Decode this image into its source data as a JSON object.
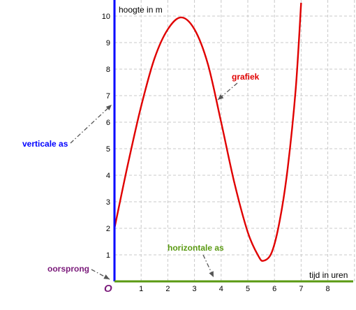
{
  "chart_data": {
    "type": "line",
    "xlabel": "tijd in uren",
    "ylabel": "hoogte in m",
    "origin_label": "O",
    "xlim": [
      0,
      9
    ],
    "ylim": [
      0,
      10.5
    ],
    "x_ticks": [
      "1",
      "2",
      "3",
      "4",
      "5",
      "6",
      "7",
      "8"
    ],
    "y_ticks": [
      "1",
      "2",
      "3",
      "4",
      "5",
      "6",
      "7",
      "8",
      "9",
      "10"
    ],
    "grid": true,
    "series": [
      {
        "color": "#e00000",
        "points": [
          [
            0.0,
            2.0
          ],
          [
            0.5,
            4.4
          ],
          [
            1.0,
            6.6
          ],
          [
            1.5,
            8.4
          ],
          [
            2.0,
            9.5
          ],
          [
            2.5,
            9.95
          ],
          [
            3.0,
            9.5
          ],
          [
            3.5,
            8.2
          ],
          [
            4.0,
            6.0
          ],
          [
            4.5,
            3.7
          ],
          [
            5.0,
            1.85
          ],
          [
            5.4,
            0.95
          ],
          [
            5.6,
            0.78
          ],
          [
            5.9,
            1.1
          ],
          [
            6.2,
            2.3
          ],
          [
            6.5,
            4.3
          ],
          [
            6.8,
            7.3
          ],
          [
            7.0,
            10.5
          ]
        ]
      }
    ],
    "annotations": {
      "grafiek": "grafiek",
      "verticale_as": "verticale as",
      "horizontale_as": "horizontale as",
      "oorsprong": "oorsprong"
    }
  },
  "colors": {
    "vertical_axis": "#0000ff",
    "horizontal_axis": "#5a9a12",
    "graph": "#e00000",
    "grafiek_label": "#e00000",
    "verticale_as_label": "#0000ff",
    "horizontale_as_label": "#5a9a12",
    "oorsprong_label": "#7a1a7a",
    "origin_label": "#7a1a7a"
  }
}
